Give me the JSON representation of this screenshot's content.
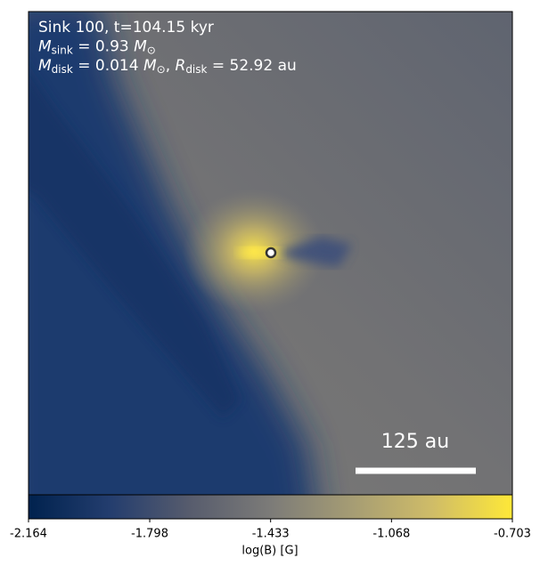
{
  "chart_data": {
    "type": "image",
    "annotations": [
      [
        {
          "text": "Sink 100, t=104.15 kyr"
        }
      ],
      [
        {
          "text": "M",
          "italic": true
        },
        {
          "text": "sink",
          "sub": true
        },
        {
          "text": " = 0.93 "
        },
        {
          "text": "M",
          "italic": true
        },
        {
          "text": "⊙",
          "sub": true
        }
      ],
      [
        {
          "text": "M",
          "italic": true
        },
        {
          "text": "disk",
          "sub": true
        },
        {
          "text": " = 0.014 "
        },
        {
          "text": "M",
          "italic": true
        },
        {
          "text": "⊙",
          "sub": true
        },
        {
          "text": ", "
        },
        {
          "text": "R",
          "italic": true
        },
        {
          "text": "disk",
          "sub": true
        },
        {
          "text": " = 52.92 au"
        }
      ]
    ],
    "scale_bar_label": "125 au",
    "colorbar": {
      "label": "log(B) [G]",
      "colormap": "cividis",
      "clim": [
        -2.164,
        -0.703
      ],
      "ticks": [
        -2.164,
        -1.798,
        -1.433,
        -1.068,
        -0.703
      ]
    }
  }
}
